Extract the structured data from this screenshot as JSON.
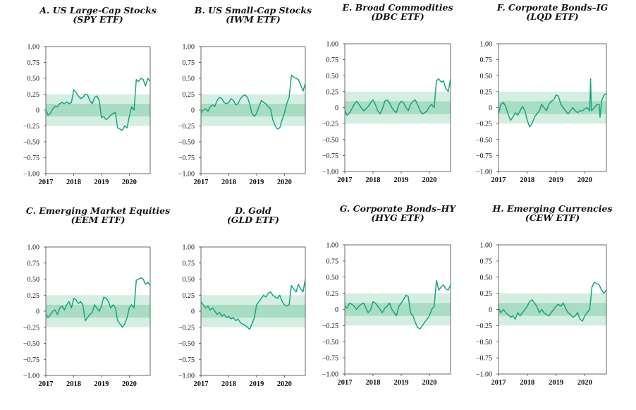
{
  "bands": {
    "inner": [
      -0.1,
      0.1
    ],
    "outer": [
      -0.25,
      0.25
    ],
    "inner_color": "#a8dcc3",
    "outer_color": "#d4efe2"
  },
  "line_color": "#1aa37e",
  "chart_data": [
    {
      "type": "line",
      "title": "A. US Large-Cap Stocks",
      "subtitle": "(SPY ETF)",
      "ylim": [
        -1.0,
        1.0
      ],
      "xlim": [
        2017.0,
        2020.75
      ],
      "yticks": [
        "1.00",
        "0.75",
        "0.50",
        "0.25",
        "0",
        "−0.25",
        "−0.50",
        "−0.75",
        "−1.00"
      ],
      "xticks": [
        "2017",
        "2018",
        "2019",
        "2020"
      ],
      "x": [
        2017.0,
        2017.08,
        2017.17,
        2017.25,
        2017.33,
        2017.42,
        2017.5,
        2017.58,
        2017.67,
        2017.75,
        2017.83,
        2017.92,
        2018.0,
        2018.08,
        2018.17,
        2018.25,
        2018.33,
        2018.42,
        2018.5,
        2018.58,
        2018.67,
        2018.75,
        2018.83,
        2018.92,
        2019.0,
        2019.08,
        2019.17,
        2019.25,
        2019.33,
        2019.42,
        2019.5,
        2019.58,
        2019.67,
        2019.75,
        2019.83,
        2019.92,
        2020.0,
        2020.08,
        2020.17,
        2020.25,
        2020.33,
        2020.42,
        2020.5,
        2020.58,
        2020.67,
        2020.75
      ],
      "values": [
        0.0,
        -0.08,
        -0.05,
        0.02,
        0.06,
        0.05,
        0.1,
        0.12,
        0.1,
        0.13,
        0.1,
        0.12,
        0.32,
        0.28,
        0.22,
        0.18,
        0.2,
        0.25,
        0.24,
        0.15,
        0.1,
        0.2,
        0.22,
        0.15,
        -0.12,
        -0.1,
        -0.15,
        -0.12,
        -0.08,
        -0.05,
        -0.04,
        -0.28,
        -0.3,
        -0.32,
        -0.25,
        -0.28,
        -0.1,
        0.05,
        0.0,
        0.48,
        0.45,
        0.5,
        0.48,
        0.38,
        0.5,
        0.45
      ]
    },
    {
      "type": "line",
      "title": "B. US Small-Cap Stocks",
      "subtitle": "(IWM ETF)",
      "ylim": [
        -1.0,
        1.0
      ],
      "xlim": [
        2017.0,
        2020.75
      ],
      "yticks": [
        "1.00",
        "0.75",
        "0.50",
        "0.25",
        "0",
        "−0.25",
        "−0.50",
        "−0.75",
        "−1.00"
      ],
      "xticks": [
        "2017",
        "2018",
        "2019",
        "2020"
      ],
      "x": [
        2017.0,
        2017.08,
        2017.17,
        2017.25,
        2017.33,
        2017.42,
        2017.5,
        2017.58,
        2017.67,
        2017.75,
        2017.83,
        2017.92,
        2018.0,
        2018.08,
        2018.17,
        2018.25,
        2018.33,
        2018.42,
        2018.5,
        2018.58,
        2018.67,
        2018.75,
        2018.83,
        2018.92,
        2019.0,
        2019.08,
        2019.17,
        2019.25,
        2019.33,
        2019.42,
        2019.5,
        2019.58,
        2019.67,
        2019.75,
        2019.83,
        2019.92,
        2020.0,
        2020.08,
        2020.17,
        2020.25,
        2020.33,
        2020.42,
        2020.5,
        2020.58,
        2020.67,
        2020.75
      ],
      "values": [
        -0.05,
        0.0,
        0.02,
        -0.02,
        0.05,
        0.08,
        0.06,
        0.15,
        0.2,
        0.18,
        0.12,
        0.1,
        0.12,
        0.18,
        0.15,
        0.08,
        0.1,
        0.18,
        0.22,
        0.24,
        0.2,
        0.1,
        -0.05,
        -0.1,
        -0.05,
        0.05,
        0.15,
        0.12,
        0.1,
        0.05,
        0.02,
        -0.15,
        -0.25,
        -0.3,
        -0.28,
        -0.15,
        -0.05,
        0.1,
        0.2,
        0.55,
        0.52,
        0.5,
        0.48,
        0.4,
        0.3,
        0.42
      ]
    },
    {
      "type": "line",
      "title": "E. Broad Commodities",
      "subtitle": "(DBC ETF)",
      "ylim": [
        -1.0,
        1.0
      ],
      "xlim": [
        2017.0,
        2020.75
      ],
      "yticks": [
        "1.00",
        "0.75",
        "0.50",
        "0.25",
        "0",
        "−0.25",
        "−0.50",
        "−0.75",
        "−1.00"
      ],
      "xticks": [
        "2017",
        "2018",
        "2019",
        "2020"
      ],
      "x": [
        2017.0,
        2017.08,
        2017.17,
        2017.25,
        2017.33,
        2017.42,
        2017.5,
        2017.58,
        2017.67,
        2017.75,
        2017.83,
        2017.92,
        2018.0,
        2018.08,
        2018.17,
        2018.25,
        2018.33,
        2018.42,
        2018.5,
        2018.58,
        2018.67,
        2018.75,
        2018.83,
        2018.92,
        2019.0,
        2019.08,
        2019.17,
        2019.25,
        2019.33,
        2019.42,
        2019.5,
        2019.58,
        2019.67,
        2019.75,
        2019.83,
        2019.92,
        2020.0,
        2020.08,
        2020.17,
        2020.25,
        2020.33,
        2020.42,
        2020.5,
        2020.58,
        2020.67,
        2020.75
      ],
      "values": [
        -0.05,
        -0.12,
        -0.08,
        -0.02,
        0.05,
        0.1,
        0.05,
        0.0,
        -0.05,
        -0.02,
        0.02,
        0.08,
        0.12,
        0.05,
        -0.05,
        -0.1,
        -0.02,
        0.1,
        0.12,
        0.08,
        0.0,
        -0.05,
        -0.08,
        0.05,
        0.1,
        0.08,
        0.0,
        -0.05,
        0.05,
        0.1,
        0.12,
        0.05,
        -0.05,
        -0.1,
        -0.08,
        -0.05,
        0.02,
        0.05,
        0.0,
        0.42,
        0.45,
        0.4,
        0.42,
        0.3,
        0.25,
        0.45
      ]
    },
    {
      "type": "line",
      "title": "F. Corporate Bonds–IG",
      "subtitle": "(LQD ETF)",
      "ylim": [
        -1.0,
        1.0
      ],
      "xlim": [
        2017.0,
        2020.75
      ],
      "yticks": [
        "1.00",
        "0.75",
        "0.50",
        "0.25",
        "0",
        "−0.25",
        "−0.50",
        "−0.75",
        "−1.00"
      ],
      "xticks": [
        "2017",
        "2018",
        "2019",
        "2020"
      ],
      "x": [
        2017.0,
        2017.08,
        2017.17,
        2017.25,
        2017.33,
        2017.42,
        2017.5,
        2017.58,
        2017.67,
        2017.75,
        2017.83,
        2017.92,
        2018.0,
        2018.08,
        2018.17,
        2018.25,
        2018.33,
        2018.42,
        2018.5,
        2018.58,
        2018.67,
        2018.75,
        2018.83,
        2018.92,
        2019.0,
        2019.08,
        2019.17,
        2019.25,
        2019.33,
        2019.42,
        2019.5,
        2019.58,
        2019.67,
        2019.75,
        2019.83,
        2019.92,
        2020.0,
        2020.08,
        2020.17,
        2020.2,
        2020.23,
        2020.33,
        2020.42,
        2020.5,
        2020.53,
        2020.58,
        2020.67,
        2020.75
      ],
      "values": [
        -0.1,
        0.05,
        0.08,
        0.02,
        -0.1,
        -0.2,
        -0.15,
        -0.08,
        -0.12,
        -0.05,
        0.02,
        -0.05,
        -0.2,
        -0.3,
        -0.25,
        -0.15,
        -0.1,
        -0.05,
        0.05,
        0.0,
        -0.05,
        0.05,
        0.1,
        0.12,
        0.2,
        0.18,
        0.05,
        0.0,
        -0.05,
        -0.1,
        -0.05,
        0.0,
        -0.05,
        -0.08,
        -0.05,
        -0.05,
        -0.02,
        0.0,
        -0.05,
        0.45,
        -0.05,
        0.0,
        0.05,
        0.05,
        -0.15,
        0.1,
        0.2,
        0.22
      ]
    },
    {
      "type": "line",
      "title": "C. Emerging Market Equities",
      "subtitle": "(EEM ETF)",
      "ylim": [
        -1.0,
        1.0
      ],
      "xlim": [
        2017.0,
        2020.75
      ],
      "yticks": [
        "1.00",
        "0.75",
        "0.50",
        "0.25",
        "0",
        "−0.25",
        "−0.50",
        "−0.75",
        "−1.00"
      ],
      "xticks": [
        "2017",
        "2018",
        "2019",
        "2020"
      ],
      "x": [
        2017.0,
        2017.08,
        2017.17,
        2017.25,
        2017.33,
        2017.42,
        2017.5,
        2017.58,
        2017.67,
        2017.75,
        2017.83,
        2017.92,
        2018.0,
        2018.08,
        2018.17,
        2018.25,
        2018.33,
        2018.42,
        2018.5,
        2018.58,
        2018.67,
        2018.75,
        2018.83,
        2018.92,
        2019.0,
        2019.08,
        2019.17,
        2019.25,
        2019.33,
        2019.42,
        2019.5,
        2019.58,
        2019.67,
        2019.75,
        2019.83,
        2019.92,
        2020.0,
        2020.08,
        2020.17,
        2020.25,
        2020.33,
        2020.42,
        2020.5,
        2020.58,
        2020.67,
        2020.75
      ],
      "values": [
        -0.05,
        -0.1,
        -0.05,
        0.0,
        0.02,
        -0.05,
        0.05,
        0.08,
        0.02,
        0.1,
        0.15,
        0.05,
        0.2,
        0.18,
        0.12,
        0.15,
        0.1,
        -0.15,
        -0.1,
        -0.05,
        -0.02,
        0.1,
        0.05,
        0.0,
        0.08,
        0.22,
        0.2,
        0.15,
        0.05,
        0.1,
        0.05,
        -0.15,
        -0.2,
        -0.25,
        -0.2,
        -0.1,
        0.05,
        0.1,
        0.05,
        0.48,
        0.5,
        0.52,
        0.5,
        0.42,
        0.45,
        0.4
      ]
    },
    {
      "type": "line",
      "title": "D. Gold",
      "subtitle": "(GLD ETF)",
      "ylim": [
        -1.0,
        1.0
      ],
      "xlim": [
        2017.0,
        2020.75
      ],
      "yticks": [
        "1.00",
        "0.75",
        "0.50",
        "0.25",
        "0",
        "−0.25",
        "−0.50",
        "−0.75",
        "−1.00"
      ],
      "xticks": [
        "2017",
        "2018",
        "2019",
        "2020"
      ],
      "x": [
        2017.0,
        2017.08,
        2017.17,
        2017.25,
        2017.33,
        2017.42,
        2017.5,
        2017.58,
        2017.67,
        2017.75,
        2017.83,
        2017.92,
        2018.0,
        2018.08,
        2018.17,
        2018.25,
        2018.33,
        2018.42,
        2018.5,
        2018.58,
        2018.67,
        2018.75,
        2018.83,
        2018.92,
        2019.0,
        2019.08,
        2019.17,
        2019.25,
        2019.33,
        2019.42,
        2019.5,
        2019.58,
        2019.67,
        2019.75,
        2019.83,
        2019.92,
        2020.0,
        2020.08,
        2020.17,
        2020.25,
        2020.33,
        2020.42,
        2020.5,
        2020.58,
        2020.67,
        2020.75
      ],
      "values": [
        0.15,
        0.1,
        0.05,
        0.08,
        0.02,
        0.05,
        0.0,
        -0.05,
        -0.02,
        -0.08,
        -0.05,
        -0.1,
        -0.08,
        -0.12,
        -0.1,
        -0.15,
        -0.12,
        -0.18,
        -0.2,
        -0.22,
        -0.25,
        -0.28,
        -0.2,
        -0.1,
        0.1,
        0.15,
        0.2,
        0.25,
        0.22,
        0.28,
        0.3,
        0.25,
        0.22,
        0.2,
        0.25,
        0.15,
        0.1,
        0.08,
        0.1,
        0.4,
        0.35,
        0.3,
        0.42,
        0.35,
        0.3,
        0.5
      ]
    },
    {
      "type": "line",
      "title": "G. Corporate Bonds–HY",
      "subtitle": "(HYG ETF)",
      "ylim": [
        -1.0,
        1.0
      ],
      "xlim": [
        2017.0,
        2020.75
      ],
      "yticks": [
        "1.00",
        "0.75",
        "0.50",
        "0.25",
        "0",
        "−0.25",
        "−0.50",
        "−0.75",
        "−1.00"
      ],
      "xticks": [
        "2017",
        "2018",
        "2019",
        "2020"
      ],
      "x": [
        2017.0,
        2017.08,
        2017.17,
        2017.25,
        2017.33,
        2017.42,
        2017.5,
        2017.58,
        2017.67,
        2017.75,
        2017.83,
        2017.92,
        2018.0,
        2018.08,
        2018.17,
        2018.25,
        2018.33,
        2018.42,
        2018.5,
        2018.58,
        2018.67,
        2018.75,
        2018.83,
        2018.92,
        2019.0,
        2019.08,
        2019.17,
        2019.25,
        2019.33,
        2019.42,
        2019.5,
        2019.58,
        2019.67,
        2019.75,
        2019.83,
        2019.92,
        2020.0,
        2020.08,
        2020.17,
        2020.25,
        2020.33,
        2020.42,
        2020.5,
        2020.58,
        2020.67,
        2020.75
      ],
      "values": [
        0.05,
        0.02,
        0.1,
        0.08,
        0.05,
        0.0,
        0.05,
        0.08,
        0.1,
        0.02,
        -0.05,
        0.0,
        0.12,
        0.1,
        0.05,
        0.0,
        -0.05,
        0.02,
        0.05,
        0.1,
        0.0,
        -0.05,
        -0.1,
        0.05,
        0.1,
        0.15,
        0.22,
        0.2,
        -0.05,
        -0.1,
        -0.2,
        -0.28,
        -0.3,
        -0.25,
        -0.2,
        -0.15,
        -0.1,
        0.0,
        0.05,
        0.45,
        0.3,
        0.35,
        0.38,
        0.32,
        0.3,
        0.38
      ]
    },
    {
      "type": "line",
      "title": "H. Emerging Currencies",
      "subtitle": "(CEW ETF)",
      "ylim": [
        -1.0,
        1.0
      ],
      "xlim": [
        2017.0,
        2020.75
      ],
      "yticks": [
        "1.00",
        "0.75",
        "0.50",
        "0.25",
        "0",
        "−0.25",
        "−0.50",
        "−0.75",
        "−1.00"
      ],
      "xticks": [
        "2017",
        "2018",
        "2019",
        "2020"
      ],
      "x": [
        2017.0,
        2017.08,
        2017.17,
        2017.25,
        2017.33,
        2017.42,
        2017.5,
        2017.58,
        2017.67,
        2017.75,
        2017.83,
        2017.92,
        2018.0,
        2018.08,
        2018.17,
        2018.25,
        2018.33,
        2018.42,
        2018.5,
        2018.58,
        2018.67,
        2018.75,
        2018.83,
        2018.92,
        2019.0,
        2019.08,
        2019.17,
        2019.25,
        2019.33,
        2019.42,
        2019.5,
        2019.58,
        2019.67,
        2019.75,
        2019.83,
        2019.92,
        2020.0,
        2020.08,
        2020.17,
        2020.25,
        2020.33,
        2020.42,
        2020.5,
        2020.58,
        2020.67,
        2020.75
      ],
      "values": [
        0.02,
        -0.05,
        0.0,
        -0.05,
        -0.08,
        -0.12,
        -0.1,
        -0.15,
        -0.05,
        -0.1,
        -0.05,
        0.0,
        0.05,
        0.12,
        0.15,
        0.1,
        0.05,
        -0.05,
        0.0,
        -0.05,
        -0.08,
        -0.1,
        -0.05,
        0.0,
        0.05,
        0.08,
        0.05,
        0.1,
        0.02,
        -0.05,
        -0.08,
        -0.12,
        -0.1,
        -0.05,
        -0.15,
        -0.18,
        -0.1,
        -0.05,
        0.0,
        0.35,
        0.42,
        0.4,
        0.38,
        0.3,
        0.25,
        0.3
      ]
    }
  ]
}
